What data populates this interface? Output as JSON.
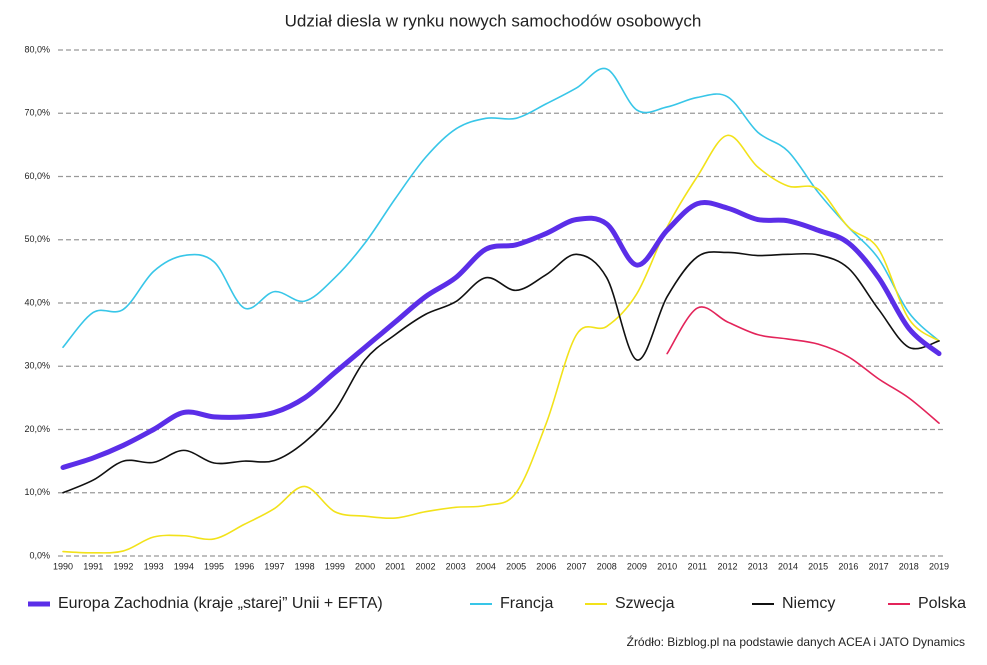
{
  "chart_data": {
    "type": "line",
    "title": "Udział diesla w rynku nowych samochodów osobowych",
    "source": "Źródło: Bizblog.pl na podstawie danych ACEA i JATO Dynamics",
    "categories": [
      "1990",
      "1991",
      "1992",
      "1993",
      "1994",
      "1995",
      "1996",
      "1997",
      "1998",
      "1999",
      "2000",
      "2001",
      "2002",
      "2003",
      "2004",
      "2005",
      "2006",
      "2007",
      "2008",
      "2009",
      "2010",
      "2011",
      "2012",
      "2013",
      "2014",
      "2015",
      "2016",
      "2017",
      "2018",
      "2019"
    ],
    "ylim": [
      0,
      80
    ],
    "yticks": [
      {
        "value": 0,
        "label": "0,0%"
      },
      {
        "value": 10,
        "label": "10,0%"
      },
      {
        "value": 20,
        "label": "20,0%"
      },
      {
        "value": 30,
        "label": "30,0%"
      },
      {
        "value": 40,
        "label": "40,0%"
      },
      {
        "value": 50,
        "label": "50,0%"
      },
      {
        "value": 60,
        "label": "60,0%"
      },
      {
        "value": 70,
        "label": "70,0%"
      },
      {
        "value": 80,
        "label": "80,0%"
      }
    ],
    "grid": true,
    "legend": "bottom",
    "series": [
      {
        "name": "Europa Zachodnia (kraje „starej” Unii + EFTA)",
        "color": "#5b2ee8",
        "width": 5,
        "values": [
          14,
          15.5,
          17.5,
          20,
          22.7,
          22,
          22,
          22.7,
          25,
          29,
          33,
          37,
          41,
          44,
          48.5,
          49.2,
          51,
          53.2,
          52.5,
          46,
          51.5,
          55.7,
          55,
          53.2,
          53,
          51.5,
          49.5,
          44,
          36,
          32
        ]
      },
      {
        "name": "Francja",
        "color": "#38c6e8",
        "width": 1.6,
        "values": [
          33,
          38.5,
          39,
          45,
          47.5,
          46.5,
          39.2,
          41.8,
          40.3,
          44,
          49.5,
          56.5,
          63,
          67.5,
          69.2,
          69.2,
          71.5,
          74,
          77,
          70.5,
          71,
          72.5,
          72.6,
          67,
          64,
          57.5,
          52,
          47,
          38.5,
          34
        ]
      },
      {
        "name": "Szwecja",
        "color": "#f2e21a",
        "width": 1.6,
        "values": [
          0.7,
          0.5,
          0.8,
          3,
          3.2,
          2.7,
          5,
          7.5,
          11,
          7,
          6.3,
          6,
          7,
          7.7,
          8,
          10,
          21,
          35,
          36.3,
          41.5,
          52,
          60,
          66.5,
          61.5,
          58.5,
          58,
          52,
          48.5,
          37.5,
          34
        ]
      },
      {
        "name": "Niemcy",
        "color": "#111111",
        "width": 1.6,
        "values": [
          10,
          12,
          15,
          14.8,
          16.7,
          14.7,
          15,
          15.1,
          18,
          23,
          31,
          35,
          38.2,
          40.2,
          44,
          42,
          44.5,
          47.7,
          44,
          31,
          41,
          47.3,
          48,
          47.5,
          47.7,
          47.6,
          45.5,
          39,
          33,
          34
        ]
      },
      {
        "name": "Polska",
        "color": "#e3245a",
        "width": 1.6,
        "values": [
          null,
          null,
          null,
          null,
          null,
          null,
          null,
          null,
          null,
          null,
          null,
          null,
          null,
          null,
          null,
          null,
          null,
          null,
          null,
          null,
          32,
          39.2,
          37,
          35,
          34.3,
          33.5,
          31.5,
          28,
          25,
          21
        ]
      }
    ]
  }
}
